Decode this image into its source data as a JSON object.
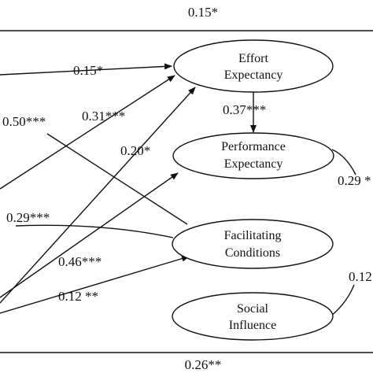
{
  "nodes": {
    "effort": {
      "line1": "Effort",
      "line2": "Expectancy"
    },
    "performance": {
      "line1": "Performance",
      "line2": "Expectancy"
    },
    "facilitating": {
      "line1": "Facilitating",
      "line2": "Conditions"
    },
    "social": {
      "line1": "Social",
      "line2": "Influence"
    }
  },
  "edge_labels": {
    "top": "0.15*",
    "to_effort_1": "0.15*",
    "to_effort_2": "0.31***",
    "to_effort_3": "0.20*",
    "left_050": "0.50***",
    "effort_perf": "0.37***",
    "perf_out": "0.29 *",
    "fc_in": "0.29***",
    "to_perf": "0.46***",
    "to_fc": "0.12 **",
    "social_out": "0.12",
    "bottom": "0.26**"
  }
}
